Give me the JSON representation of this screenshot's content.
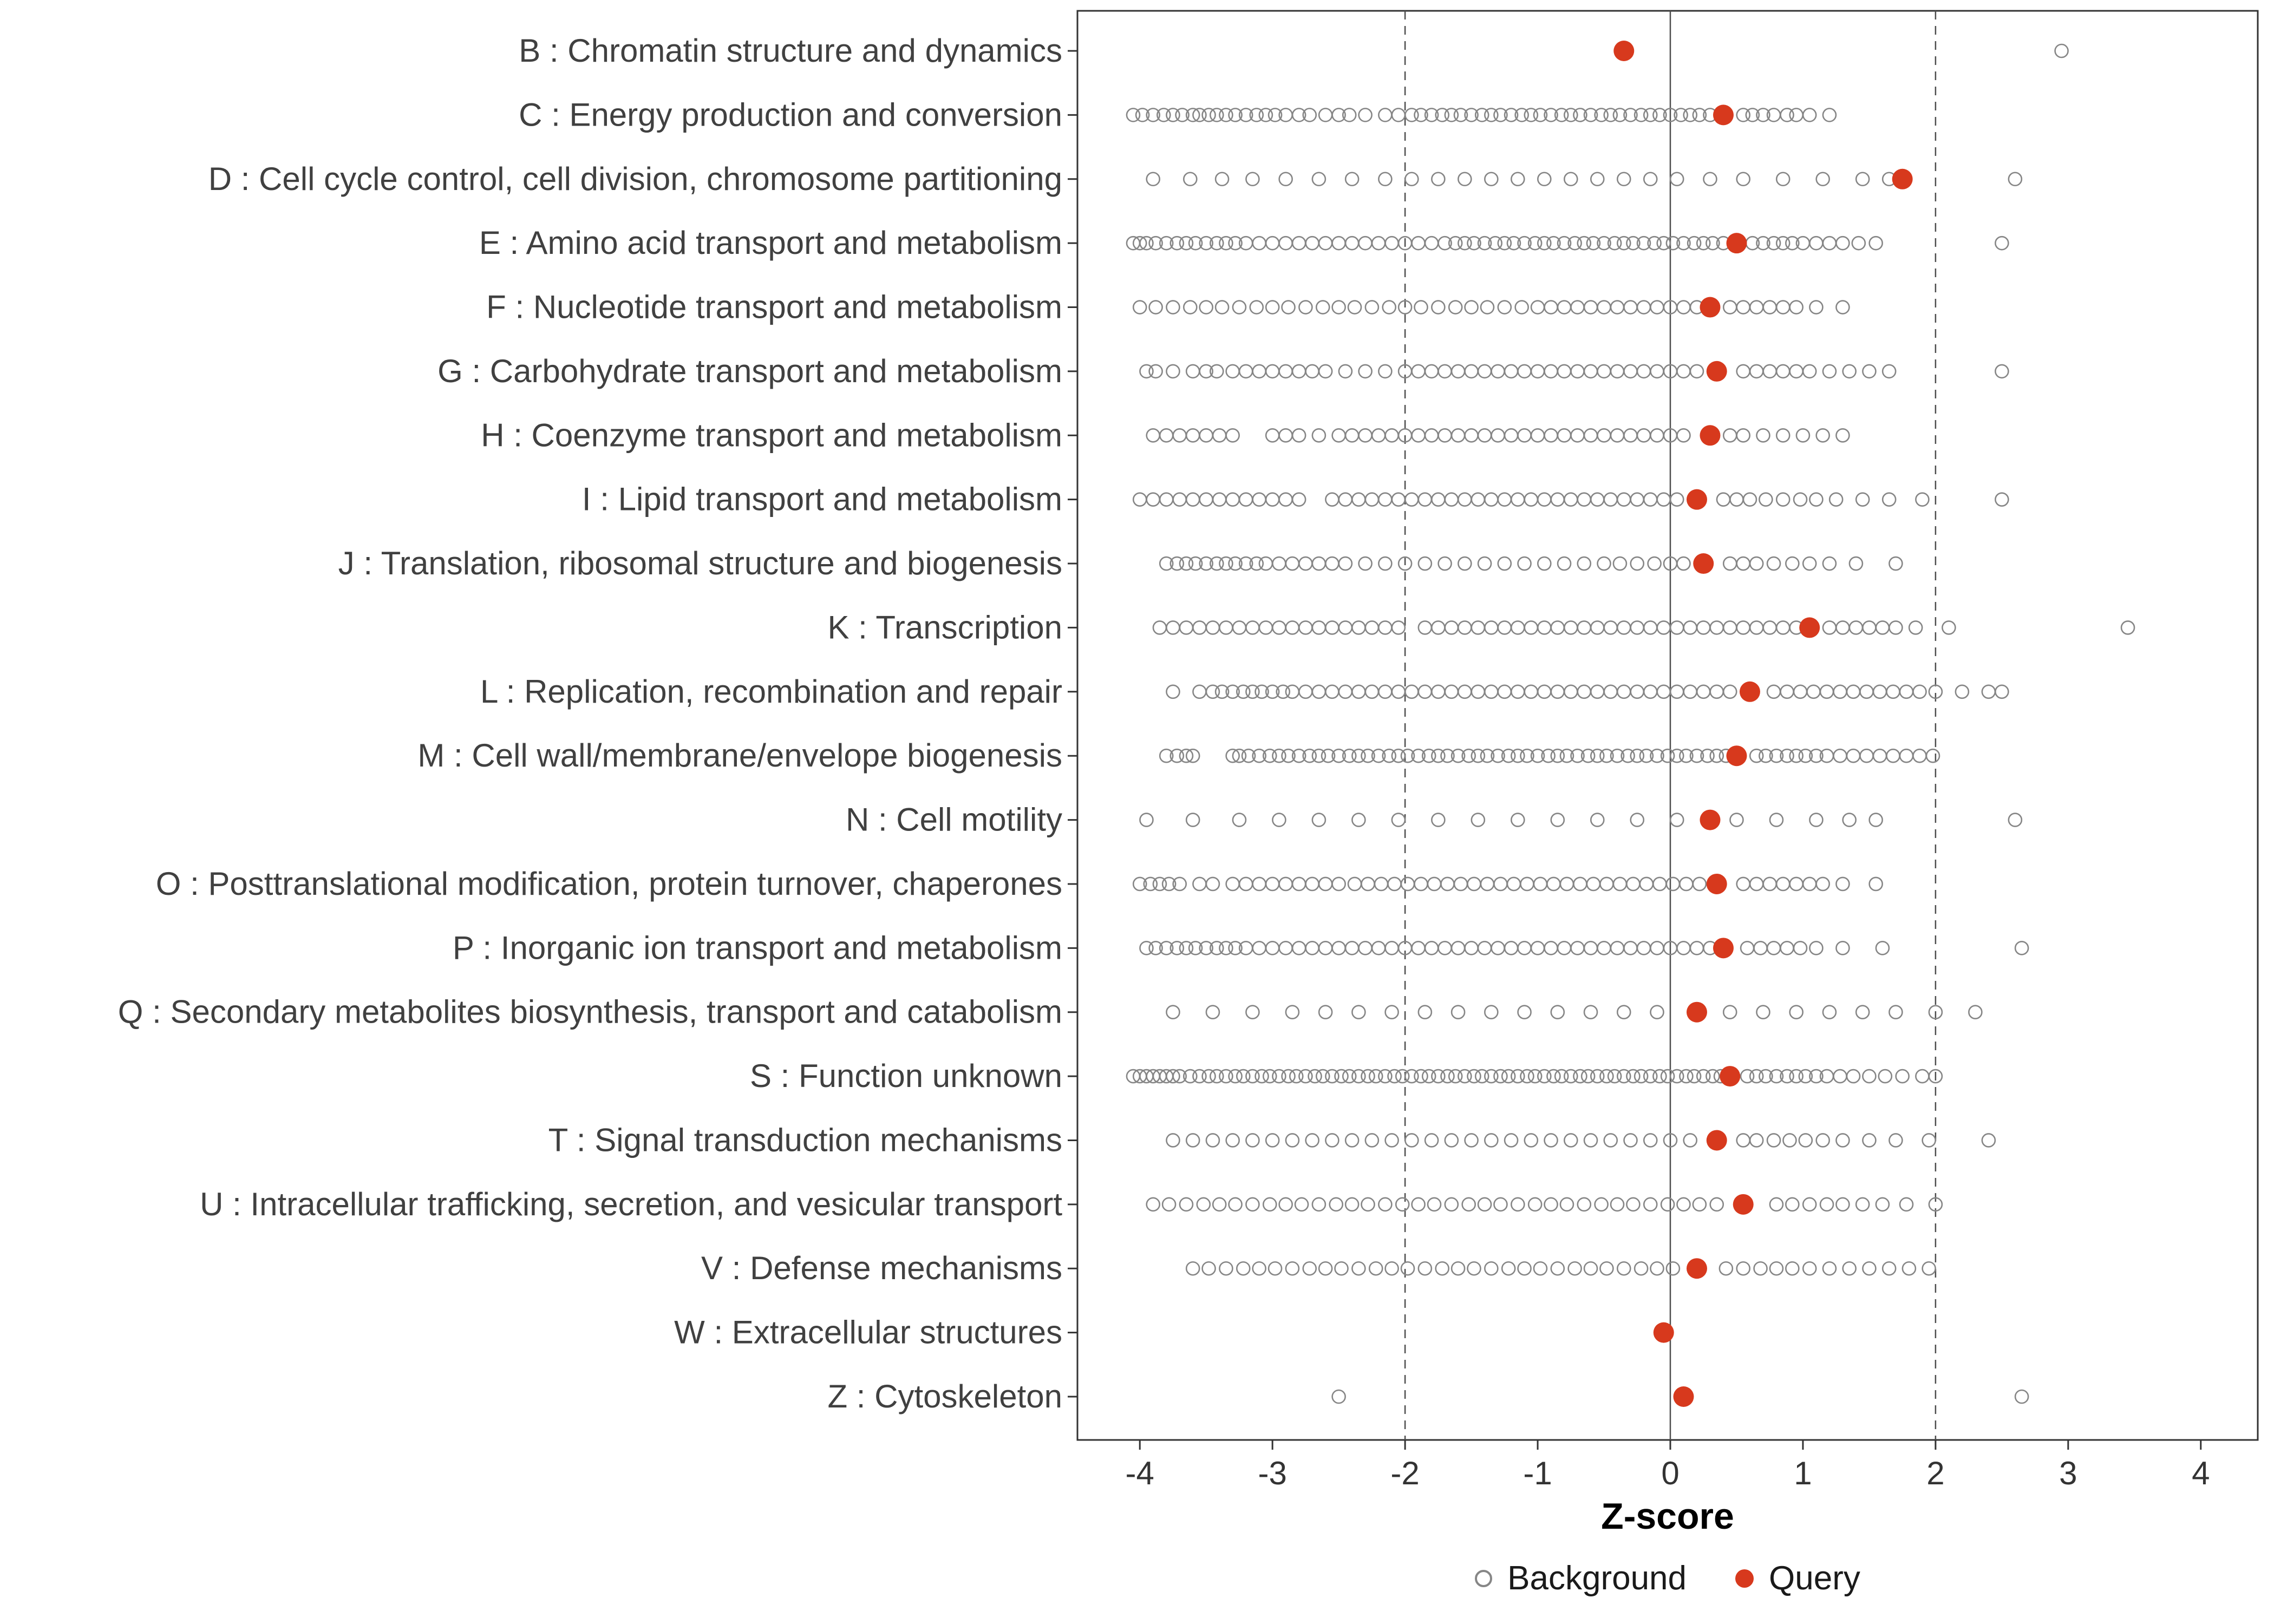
{
  "chart_data": {
    "type": "scatter",
    "title": "",
    "xlabel": "Z-score",
    "x_ticks": [
      -4,
      -3,
      -2,
      -1,
      0,
      1,
      2,
      3,
      4
    ],
    "xlim": [
      -4.45,
      4.45
    ],
    "grid": false,
    "reference_lines": {
      "solid": [
        0
      ],
      "dashed": [
        -2,
        2
      ]
    },
    "colors": {
      "background": "#868686",
      "query": "#d7391d",
      "axis_text": "#333333",
      "panel_border": "#333333",
      "ref_line": "#4d4d4d"
    },
    "legend": [
      {
        "name": "Background",
        "marker": "open-circle",
        "color": "#868686"
      },
      {
        "name": "Query",
        "marker": "filled-circle",
        "color": "#d7391d"
      }
    ],
    "legend_position": "bottom",
    "categories": [
      {
        "label": "B : Chromatin structure and dynamics",
        "query": -0.35,
        "background": [
          2.95
        ]
      },
      {
        "label": "C : Energy production and conversion",
        "query": 0.4,
        "background": [
          -4.05,
          -3.98,
          -3.9,
          -3.82,
          -3.75,
          -3.68,
          -3.6,
          -3.55,
          -3.48,
          -3.42,
          -3.35,
          -3.28,
          -3.2,
          -3.12,
          -3.05,
          -2.98,
          -2.9,
          -2.8,
          -2.72,
          -2.6,
          -2.5,
          -2.42,
          -2.3,
          -2.15,
          -2.05,
          -1.95,
          -1.88,
          -1.8,
          -1.72,
          -1.65,
          -1.58,
          -1.5,
          -1.42,
          -1.35,
          -1.28,
          -1.2,
          -1.12,
          -1.05,
          -0.98,
          -0.9,
          -0.82,
          -0.75,
          -0.68,
          -0.6,
          -0.52,
          -0.45,
          -0.38,
          -0.3,
          -0.22,
          -0.15,
          -0.08,
          0.0,
          0.08,
          0.15,
          0.22,
          0.3,
          0.55,
          0.62,
          0.7,
          0.78,
          0.88,
          0.95,
          1.05,
          1.2
        ]
      },
      {
        "label": "D : Cell cycle control, cell division, chromosome partitioning",
        "query": 1.75,
        "background": [
          -3.9,
          -3.62,
          -3.38,
          -3.15,
          -2.9,
          -2.65,
          -2.4,
          -2.15,
          -1.95,
          -1.75,
          -1.55,
          -1.35,
          -1.15,
          -0.95,
          -0.75,
          -0.55,
          -0.35,
          -0.15,
          0.05,
          0.3,
          0.55,
          0.85,
          1.15,
          1.45,
          1.65,
          2.6
        ]
      },
      {
        "label": "E : Amino acid transport and metabolism",
        "query": 0.5,
        "background": [
          -4.05,
          -4.0,
          -3.95,
          -3.88,
          -3.8,
          -3.72,
          -3.65,
          -3.58,
          -3.5,
          -3.42,
          -3.35,
          -3.28,
          -3.2,
          -3.1,
          -3.0,
          -2.9,
          -2.8,
          -2.7,
          -2.6,
          -2.5,
          -2.4,
          -2.3,
          -2.2,
          -2.1,
          -2.0,
          -1.9,
          -1.8,
          -1.7,
          -1.62,
          -1.55,
          -1.48,
          -1.4,
          -1.32,
          -1.25,
          -1.18,
          -1.1,
          -1.02,
          -0.95,
          -0.88,
          -0.8,
          -0.72,
          -0.65,
          -0.58,
          -0.5,
          -0.42,
          -0.35,
          -0.28,
          -0.2,
          -0.12,
          -0.05,
          0.02,
          0.1,
          0.18,
          0.25,
          0.32,
          0.4,
          0.62,
          0.7,
          0.78,
          0.85,
          0.92,
          1.0,
          1.1,
          1.2,
          1.3,
          1.42,
          1.55,
          2.5
        ]
      },
      {
        "label": "F : Nucleotide transport and metabolism",
        "query": 0.3,
        "background": [
          -4.0,
          -3.88,
          -3.75,
          -3.62,
          -3.5,
          -3.38,
          -3.25,
          -3.12,
          -3.0,
          -2.88,
          -2.75,
          -2.62,
          -2.5,
          -2.38,
          -2.25,
          -2.12,
          -2.0,
          -1.88,
          -1.75,
          -1.62,
          -1.5,
          -1.38,
          -1.25,
          -1.12,
          -1.0,
          -0.9,
          -0.8,
          -0.7,
          -0.6,
          -0.5,
          -0.4,
          -0.3,
          -0.2,
          -0.1,
          0.0,
          0.1,
          0.2,
          0.45,
          0.55,
          0.65,
          0.75,
          0.85,
          0.95,
          1.1,
          1.3
        ]
      },
      {
        "label": "G : Carbohydrate transport and metabolism",
        "query": 0.35,
        "background": [
          -3.95,
          -3.88,
          -3.75,
          -3.6,
          -3.5,
          -3.42,
          -3.3,
          -3.2,
          -3.1,
          -3.0,
          -2.9,
          -2.8,
          -2.7,
          -2.6,
          -2.45,
          -2.3,
          -2.15,
          -2.0,
          -1.9,
          -1.8,
          -1.7,
          -1.6,
          -1.5,
          -1.4,
          -1.3,
          -1.2,
          -1.1,
          -1.0,
          -0.9,
          -0.8,
          -0.7,
          -0.6,
          -0.5,
          -0.4,
          -0.3,
          -0.2,
          -0.1,
          0.0,
          0.1,
          0.2,
          0.55,
          0.65,
          0.75,
          0.85,
          0.95,
          1.05,
          1.2,
          1.35,
          1.5,
          1.65,
          2.5
        ]
      },
      {
        "label": "H : Coenzyme transport and metabolism",
        "query": 0.3,
        "background": [
          -3.9,
          -3.8,
          -3.7,
          -3.6,
          -3.5,
          -3.4,
          -3.3,
          -3.0,
          -2.9,
          -2.8,
          -2.65,
          -2.5,
          -2.4,
          -2.3,
          -2.2,
          -2.1,
          -2.0,
          -1.9,
          -1.8,
          -1.7,
          -1.6,
          -1.5,
          -1.4,
          -1.3,
          -1.2,
          -1.1,
          -1.0,
          -0.9,
          -0.8,
          -0.7,
          -0.6,
          -0.5,
          -0.4,
          -0.3,
          -0.2,
          -0.1,
          0.0,
          0.1,
          0.45,
          0.55,
          0.7,
          0.85,
          1.0,
          1.15,
          1.3
        ]
      },
      {
        "label": "I : Lipid transport and metabolism",
        "query": 0.2,
        "background": [
          -4.0,
          -3.9,
          -3.8,
          -3.7,
          -3.6,
          -3.5,
          -3.4,
          -3.3,
          -3.2,
          -3.1,
          -3.0,
          -2.9,
          -2.8,
          -2.55,
          -2.45,
          -2.35,
          -2.25,
          -2.15,
          -2.05,
          -1.95,
          -1.85,
          -1.75,
          -1.65,
          -1.55,
          -1.45,
          -1.35,
          -1.25,
          -1.15,
          -1.05,
          -0.95,
          -0.85,
          -0.75,
          -0.65,
          -0.55,
          -0.45,
          -0.35,
          -0.25,
          -0.15,
          -0.05,
          0.05,
          0.4,
          0.5,
          0.6,
          0.72,
          0.85,
          0.98,
          1.1,
          1.25,
          1.45,
          1.65,
          1.9,
          2.5
        ]
      },
      {
        "label": "J : Translation, ribosomal structure and biogenesis",
        "query": 0.25,
        "background": [
          -3.8,
          -3.72,
          -3.65,
          -3.58,
          -3.5,
          -3.42,
          -3.35,
          -3.28,
          -3.2,
          -3.12,
          -3.05,
          -2.95,
          -2.85,
          -2.75,
          -2.65,
          -2.55,
          -2.45,
          -2.3,
          -2.15,
          -2.0,
          -1.85,
          -1.7,
          -1.55,
          -1.4,
          -1.25,
          -1.1,
          -0.95,
          -0.8,
          -0.65,
          -0.5,
          -0.38,
          -0.25,
          -0.12,
          0.0,
          0.1,
          0.45,
          0.55,
          0.65,
          0.78,
          0.92,
          1.05,
          1.2,
          1.4,
          1.7
        ]
      },
      {
        "label": "K : Transcription",
        "query": 1.05,
        "background": [
          -3.85,
          -3.75,
          -3.65,
          -3.55,
          -3.45,
          -3.35,
          -3.25,
          -3.15,
          -3.05,
          -2.95,
          -2.85,
          -2.75,
          -2.65,
          -2.55,
          -2.45,
          -2.35,
          -2.25,
          -2.15,
          -2.05,
          -1.85,
          -1.75,
          -1.65,
          -1.55,
          -1.45,
          -1.35,
          -1.25,
          -1.15,
          -1.05,
          -0.95,
          -0.85,
          -0.75,
          -0.65,
          -0.55,
          -0.45,
          -0.35,
          -0.25,
          -0.15,
          -0.05,
          0.05,
          0.15,
          0.25,
          0.35,
          0.45,
          0.55,
          0.65,
          0.75,
          0.85,
          0.95,
          1.2,
          1.3,
          1.4,
          1.5,
          1.6,
          1.7,
          1.85,
          2.1,
          3.45
        ]
      },
      {
        "label": "L : Replication, recombination and repair",
        "query": 0.6,
        "background": [
          -3.75,
          -3.55,
          -3.45,
          -3.38,
          -3.3,
          -3.22,
          -3.15,
          -3.08,
          -3.0,
          -2.92,
          -2.85,
          -2.75,
          -2.65,
          -2.55,
          -2.45,
          -2.35,
          -2.25,
          -2.15,
          -2.05,
          -1.95,
          -1.85,
          -1.75,
          -1.65,
          -1.55,
          -1.45,
          -1.35,
          -1.25,
          -1.15,
          -1.05,
          -0.95,
          -0.85,
          -0.75,
          -0.65,
          -0.55,
          -0.45,
          -0.35,
          -0.25,
          -0.15,
          -0.05,
          0.05,
          0.15,
          0.25,
          0.35,
          0.45,
          0.78,
          0.88,
          0.98,
          1.08,
          1.18,
          1.28,
          1.38,
          1.48,
          1.58,
          1.68,
          1.78,
          1.88,
          2.0,
          2.2,
          2.4,
          2.5
        ]
      },
      {
        "label": "M : Cell wall/membrane/envelope biogenesis",
        "query": 0.5,
        "background": [
          -3.8,
          -3.72,
          -3.65,
          -3.6,
          -3.3,
          -3.25,
          -3.18,
          -3.1,
          -3.02,
          -2.95,
          -2.88,
          -2.8,
          -2.72,
          -2.65,
          -2.58,
          -2.5,
          -2.42,
          -2.35,
          -2.28,
          -2.2,
          -2.12,
          -2.05,
          -1.98,
          -1.9,
          -1.82,
          -1.75,
          -1.68,
          -1.6,
          -1.52,
          -1.45,
          -1.38,
          -1.3,
          -1.22,
          -1.15,
          -1.08,
          -1.0,
          -0.92,
          -0.85,
          -0.78,
          -0.7,
          -0.62,
          -0.55,
          -0.48,
          -0.4,
          -0.32,
          -0.25,
          -0.18,
          -0.1,
          -0.02,
          0.05,
          0.12,
          0.2,
          0.28,
          0.35,
          0.42,
          0.65,
          0.72,
          0.8,
          0.88,
          0.95,
          1.02,
          1.1,
          1.18,
          1.28,
          1.38,
          1.48,
          1.58,
          1.68,
          1.78,
          1.88,
          1.98
        ]
      },
      {
        "label": "N : Cell motility",
        "query": 0.3,
        "background": [
          -3.95,
          -3.6,
          -3.25,
          -2.95,
          -2.65,
          -2.35,
          -2.05,
          -1.75,
          -1.45,
          -1.15,
          -0.85,
          -0.55,
          -0.25,
          0.05,
          0.5,
          0.8,
          1.1,
          1.35,
          1.55,
          2.6
        ]
      },
      {
        "label": "O : Posttranslational modification, protein turnover, chaperones",
        "query": 0.35,
        "background": [
          -4.0,
          -3.92,
          -3.85,
          -3.78,
          -3.7,
          -3.55,
          -3.45,
          -3.3,
          -3.2,
          -3.1,
          -3.0,
          -2.9,
          -2.8,
          -2.7,
          -2.6,
          -2.5,
          -2.38,
          -2.28,
          -2.18,
          -2.08,
          -1.98,
          -1.88,
          -1.78,
          -1.68,
          -1.58,
          -1.48,
          -1.38,
          -1.28,
          -1.18,
          -1.08,
          -0.98,
          -0.88,
          -0.78,
          -0.68,
          -0.58,
          -0.48,
          -0.38,
          -0.28,
          -0.18,
          -0.08,
          0.02,
          0.12,
          0.22,
          0.55,
          0.65,
          0.75,
          0.85,
          0.95,
          1.05,
          1.15,
          1.3,
          1.55
        ]
      },
      {
        "label": "P : Inorganic ion transport and metabolism",
        "query": 0.4,
        "background": [
          -3.95,
          -3.88,
          -3.8,
          -3.72,
          -3.65,
          -3.58,
          -3.5,
          -3.42,
          -3.35,
          -3.28,
          -3.2,
          -3.1,
          -3.0,
          -2.9,
          -2.8,
          -2.7,
          -2.6,
          -2.5,
          -2.4,
          -2.3,
          -2.2,
          -2.1,
          -2.0,
          -1.9,
          -1.8,
          -1.7,
          -1.6,
          -1.5,
          -1.4,
          -1.3,
          -1.2,
          -1.1,
          -1.0,
          -0.9,
          -0.8,
          -0.7,
          -0.6,
          -0.5,
          -0.4,
          -0.3,
          -0.2,
          -0.1,
          0.0,
          0.1,
          0.2,
          0.3,
          0.58,
          0.68,
          0.78,
          0.88,
          0.98,
          1.1,
          1.3,
          1.6,
          2.65
        ]
      },
      {
        "label": "Q : Secondary metabolites biosynthesis, transport and catabolism",
        "query": 0.2,
        "background": [
          -3.75,
          -3.45,
          -3.15,
          -2.85,
          -2.6,
          -2.35,
          -2.1,
          -1.85,
          -1.6,
          -1.35,
          -1.1,
          -0.85,
          -0.6,
          -0.35,
          -0.1,
          0.45,
          0.7,
          0.95,
          1.2,
          1.45,
          1.7,
          2.0,
          2.3
        ]
      },
      {
        "label": "S : Function unknown",
        "query": 0.45,
        "background": [
          -4.05,
          -4.0,
          -3.95,
          -3.9,
          -3.85,
          -3.8,
          -3.75,
          -3.7,
          -3.62,
          -3.55,
          -3.48,
          -3.42,
          -3.35,
          -3.28,
          -3.22,
          -3.15,
          -3.08,
          -3.02,
          -2.95,
          -2.88,
          -2.82,
          -2.75,
          -2.68,
          -2.62,
          -2.55,
          -2.48,
          -2.42,
          -2.35,
          -2.28,
          -2.22,
          -2.15,
          -2.08,
          -2.02,
          -1.95,
          -1.88,
          -1.82,
          -1.75,
          -1.68,
          -1.62,
          -1.55,
          -1.48,
          -1.42,
          -1.35,
          -1.28,
          -1.22,
          -1.15,
          -1.08,
          -1.02,
          -0.95,
          -0.88,
          -0.82,
          -0.75,
          -0.68,
          -0.62,
          -0.55,
          -0.48,
          -0.42,
          -0.35,
          -0.28,
          -0.22,
          -0.15,
          -0.08,
          -0.02,
          0.05,
          0.12,
          0.18,
          0.25,
          0.32,
          0.38,
          0.58,
          0.65,
          0.72,
          0.8,
          0.88,
          0.95,
          1.02,
          1.1,
          1.18,
          1.28,
          1.38,
          1.5,
          1.62,
          1.75,
          1.9,
          2.0
        ]
      },
      {
        "label": "T : Signal transduction mechanisms",
        "query": 0.35,
        "background": [
          -3.75,
          -3.6,
          -3.45,
          -3.3,
          -3.15,
          -3.0,
          -2.85,
          -2.7,
          -2.55,
          -2.4,
          -2.25,
          -2.1,
          -1.95,
          -1.8,
          -1.65,
          -1.5,
          -1.35,
          -1.2,
          -1.05,
          -0.9,
          -0.75,
          -0.6,
          -0.45,
          -0.3,
          -0.15,
          0.0,
          0.15,
          0.55,
          0.65,
          0.78,
          0.9,
          1.02,
          1.15,
          1.3,
          1.5,
          1.7,
          1.95,
          2.4
        ]
      },
      {
        "label": "U : Intracellular trafficking, secretion, and vesicular transport",
        "query": 0.55,
        "background": [
          -3.9,
          -3.78,
          -3.65,
          -3.52,
          -3.4,
          -3.28,
          -3.15,
          -3.02,
          -2.9,
          -2.78,
          -2.65,
          -2.52,
          -2.4,
          -2.28,
          -2.15,
          -2.02,
          -1.9,
          -1.78,
          -1.65,
          -1.52,
          -1.4,
          -1.28,
          -1.15,
          -1.02,
          -0.9,
          -0.78,
          -0.65,
          -0.52,
          -0.4,
          -0.28,
          -0.15,
          -0.02,
          0.1,
          0.22,
          0.35,
          0.8,
          0.92,
          1.05,
          1.18,
          1.3,
          1.45,
          1.6,
          1.78,
          2.0
        ]
      },
      {
        "label": "V : Defense mechanisms",
        "query": 0.2,
        "background": [
          -3.6,
          -3.48,
          -3.35,
          -3.22,
          -3.1,
          -2.98,
          -2.85,
          -2.72,
          -2.6,
          -2.48,
          -2.35,
          -2.22,
          -2.1,
          -1.98,
          -1.85,
          -1.72,
          -1.6,
          -1.48,
          -1.35,
          -1.22,
          -1.1,
          -0.98,
          -0.85,
          -0.72,
          -0.6,
          -0.48,
          -0.35,
          -0.22,
          -0.1,
          0.02,
          0.42,
          0.55,
          0.68,
          0.8,
          0.92,
          1.05,
          1.2,
          1.35,
          1.5,
          1.65,
          1.8,
          1.95
        ]
      },
      {
        "label": "W : Extracellular structures",
        "query": -0.05,
        "background": []
      },
      {
        "label": "Z : Cytoskeleton",
        "query": 0.1,
        "background": [
          -2.5,
          2.65
        ]
      }
    ]
  }
}
